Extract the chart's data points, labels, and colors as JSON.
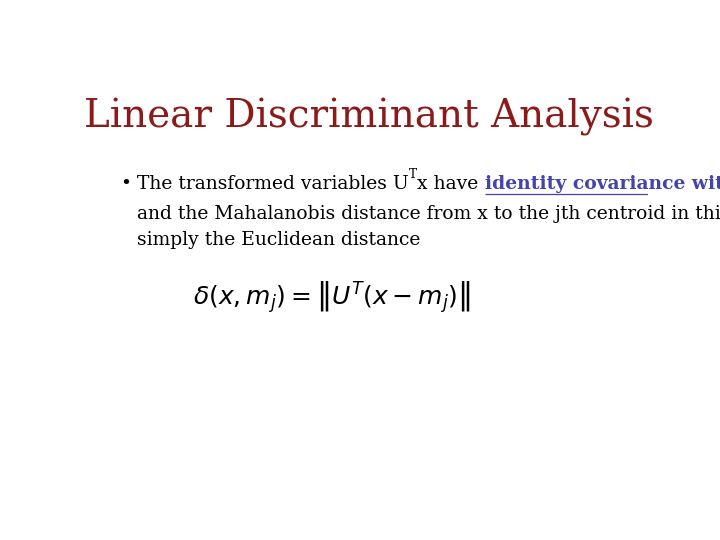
{
  "title": "Linear Discriminant Analysis",
  "title_color": "#8B1A1A",
  "title_fontsize": 28,
  "background_color": "#FFFFFF",
  "bullet_text_color": "#000000",
  "highlight_color": "#4444AA",
  "bullet_line2": "and the Mahalanobis distance from x to the jth centroid in this space is",
  "bullet_line3": "simply the Euclidean distance",
  "font_family": "serif",
  "text_fontsize": 13.5,
  "formula_fontsize": 18
}
